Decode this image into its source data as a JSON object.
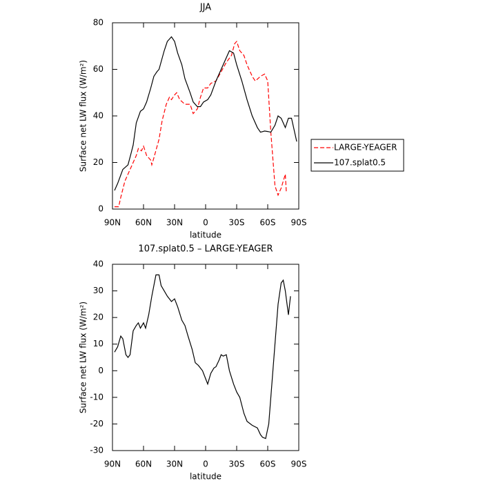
{
  "chart_data": [
    {
      "type": "line",
      "title": "JJA",
      "xlabel": "latitude",
      "ylabel": "Surface net LW flux (W/m²)",
      "xlim": [
        90,
        -90
      ],
      "ylim": [
        0,
        80
      ],
      "xticks": [
        {
          "value": 90,
          "label": "90N"
        },
        {
          "value": 60,
          "label": "60N"
        },
        {
          "value": 30,
          "label": "30N"
        },
        0,
        {
          "value": -30,
          "label": "30S"
        },
        {
          "value": -60,
          "label": "60S"
        },
        {
          "value": -90,
          "label": "90S"
        }
      ],
      "yticks": [
        0,
        20,
        40,
        60,
        80
      ],
      "legend": "outside-right",
      "series": [
        {
          "name": "LARGE-YEAGER",
          "color": "#ff0000",
          "dashed": true,
          "x": [
            88,
            84,
            82,
            78,
            75,
            72,
            70,
            67,
            65,
            62,
            60,
            57,
            53,
            52,
            50,
            45,
            42,
            38,
            35,
            33,
            30,
            28,
            25,
            20,
            15,
            12,
            8,
            5,
            2,
            -2,
            -5,
            -10,
            -15,
            -20,
            -25,
            -28,
            -30,
            -33,
            -37,
            -40,
            -45,
            -48,
            -53,
            -57,
            -60,
            -63,
            -67,
            -70,
            -73,
            -77,
            -78
          ],
          "values": [
            1,
            1,
            5,
            12,
            15,
            18,
            20,
            23,
            26,
            25,
            27,
            23,
            21,
            19,
            22,
            30,
            38,
            45,
            48,
            47,
            49,
            50,
            47,
            45,
            45,
            41,
            43,
            48,
            52,
            52,
            54,
            55,
            59,
            63,
            66,
            71,
            72,
            68,
            66,
            62,
            57,
            55,
            57,
            58,
            55,
            33,
            10,
            6,
            9,
            15,
            7
          ]
        },
        {
          "name": "107.splat0.5",
          "color": "#000000",
          "dashed": false,
          "x": [
            88,
            85,
            80,
            75,
            72,
            70,
            67,
            63,
            60,
            57,
            53,
            50,
            47,
            45,
            40,
            37,
            33,
            30,
            27,
            23,
            20,
            15,
            12,
            8,
            5,
            2,
            -2,
            -5,
            -10,
            -15,
            -20,
            -23,
            -27,
            -30,
            -35,
            -40,
            -45,
            -50,
            -53,
            -57,
            -60,
            -63,
            -67,
            -70,
            -73,
            -77,
            -80,
            -83,
            -88
          ],
          "values": [
            8,
            11,
            17,
            19,
            24,
            27.5,
            37,
            42,
            43,
            46,
            52,
            57,
            59,
            60,
            68,
            72,
            74,
            72,
            67,
            62,
            56,
            50,
            46,
            44,
            44,
            46,
            47,
            49,
            55,
            60,
            65,
            68,
            67,
            62,
            55,
            47,
            40,
            35,
            33,
            33.5,
            33.3,
            33,
            36,
            40,
            39,
            35,
            39,
            39,
            29
          ]
        }
      ]
    },
    {
      "type": "line",
      "title": "107.splat0.5 – LARGE-YEAGER",
      "xlabel": "latitude",
      "ylabel": "Surface net LW flux (W/m²)",
      "xlim": [
        90,
        -90
      ],
      "ylim": [
        -30,
        40
      ],
      "xticks": [
        {
          "value": 90,
          "label": "90N"
        },
        {
          "value": 60,
          "label": "60N"
        },
        {
          "value": 30,
          "label": "30N"
        },
        0,
        {
          "value": -30,
          "label": "30S"
        },
        {
          "value": -60,
          "label": "60S"
        },
        {
          "value": -90,
          "label": "90S"
        }
      ],
      "yticks": [
        -30,
        -20,
        -10,
        0,
        10,
        20,
        30,
        40
      ],
      "series": [
        {
          "color": "#000000",
          "dashed": false,
          "x": [
            88,
            85,
            82,
            80,
            77,
            75,
            73,
            70,
            67,
            65,
            63,
            60,
            58,
            55,
            52,
            48,
            45,
            43,
            40,
            37,
            33,
            30,
            27,
            23,
            20,
            17,
            13,
            10,
            7,
            3,
            0,
            -2,
            -5,
            -8,
            -10,
            -13,
            -15,
            -17,
            -20,
            -23,
            -27,
            -30,
            -33,
            -37,
            -40,
            -45,
            -50,
            -53,
            -55,
            -58,
            -61,
            -63,
            -67,
            -70,
            -73,
            -75,
            -77,
            -80,
            -82
          ],
          "values": [
            7,
            9,
            13,
            12,
            6,
            5,
            6,
            15,
            17,
            18,
            16,
            18,
            16,
            21,
            28,
            36,
            36,
            32,
            30,
            28,
            26,
            27,
            24,
            19,
            17,
            13,
            8,
            3,
            2,
            0,
            -3,
            -5,
            -1,
            1,
            1.5,
            4,
            6,
            5.5,
            6,
            0,
            -5,
            -8,
            -10,
            -16,
            -19,
            -20.5,
            -21.5,
            -24,
            -25,
            -25.5,
            -20,
            -10,
            10,
            25,
            33,
            34,
            30,
            21,
            28
          ]
        }
      ]
    }
  ]
}
